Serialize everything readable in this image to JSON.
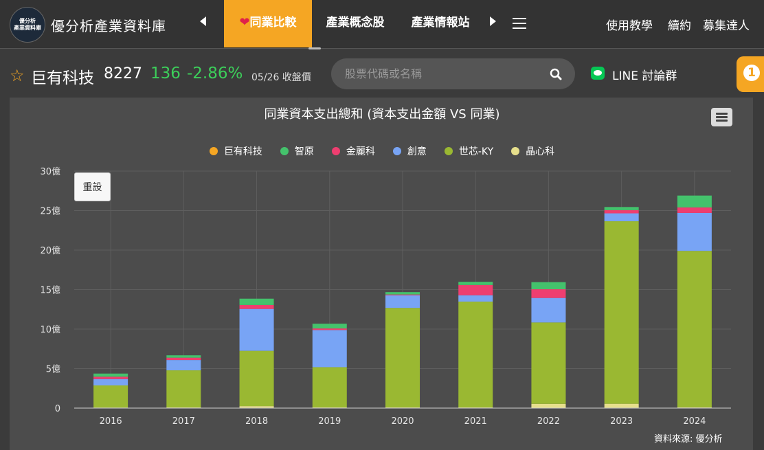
{
  "header": {
    "logo_lines": [
      "優分析",
      "產業資料庫"
    ],
    "site_title": "優分析產業資料庫",
    "tabs": [
      {
        "label": "同業比較",
        "active": true
      },
      {
        "label": "產業概念股",
        "active": false
      },
      {
        "label": "產業情報站",
        "active": false
      }
    ],
    "links": [
      "使用教學",
      "續約",
      "募集達人"
    ]
  },
  "stock": {
    "name": "巨有科技",
    "code": "8227",
    "price": "136",
    "change": "-2.86%",
    "date_label": "05/26 收盤價"
  },
  "search": {
    "placeholder": "股票代碼或名稱"
  },
  "line_group": {
    "label": "LINE 討論群"
  },
  "notification": {
    "count": "1"
  },
  "colors": {
    "accent": "#f5a623",
    "price_change": "#3ccf5a"
  },
  "chart": {
    "reset_label": "重設",
    "credit": "資料來源: 優分析"
  },
  "chart_data": {
    "type": "bar",
    "stacked": true,
    "title": "同業資本支出總和 (資本支出金額 VS 同業)",
    "categories": [
      "2016",
      "2017",
      "2018",
      "2019",
      "2020",
      "2021",
      "2022",
      "2023",
      "2024"
    ],
    "y_tick_labels": [
      "0",
      "5億",
      "10億",
      "15億",
      "20億",
      "25億",
      "30億"
    ],
    "ylim": [
      0,
      30
    ],
    "y_unit": "億",
    "grid": true,
    "legend_position": "top",
    "series": [
      {
        "name": "巨有科技",
        "color": "#f5a623",
        "values": [
          0.02,
          0.03,
          0.05,
          0.03,
          0.03,
          0.03,
          0.04,
          0.05,
          0.05
        ]
      },
      {
        "name": "晶心科",
        "color": "#e6df8c",
        "values": [
          0.05,
          0.05,
          0.2,
          0.05,
          0.05,
          0.05,
          0.5,
          0.5,
          0.05
        ]
      },
      {
        "name": "世芯-KY",
        "color": "#9ab832",
        "values": [
          2.8,
          4.7,
          7.0,
          5.1,
          12.6,
          13.4,
          10.3,
          23.1,
          19.8
        ]
      },
      {
        "name": "創意",
        "color": "#78a4f5",
        "values": [
          0.8,
          1.3,
          5.3,
          4.7,
          1.6,
          0.8,
          3.1,
          1.0,
          4.8
        ]
      },
      {
        "name": "金麗科",
        "color": "#ee3e70",
        "values": [
          0.3,
          0.3,
          0.5,
          0.2,
          0.1,
          1.3,
          1.1,
          0.4,
          0.7
        ]
      },
      {
        "name": "智原",
        "color": "#44c26c",
        "values": [
          0.4,
          0.3,
          0.8,
          0.6,
          0.3,
          0.4,
          0.9,
          0.4,
          1.5
        ]
      }
    ],
    "legend_order": [
      "巨有科技",
      "智原",
      "金麗科",
      "創意",
      "世芯-KY",
      "晶心科"
    ]
  }
}
